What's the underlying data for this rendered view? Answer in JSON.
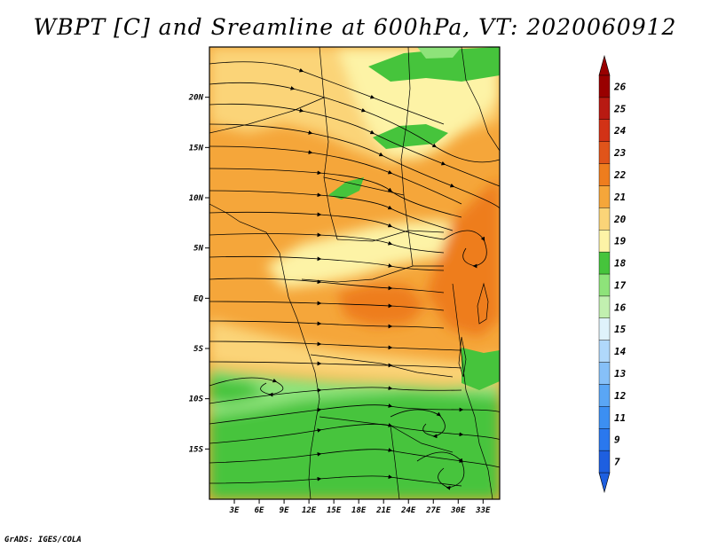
{
  "title": "WBPT [C] and Sreamline at 600hPa, VT: 2020060912",
  "credit": "GrADS: IGES/COLA",
  "lat_labels": [
    "20N",
    "15N",
    "10N",
    "5N",
    "EQ",
    "5S",
    "10S",
    "15S"
  ],
  "lat_values": [
    20,
    15,
    10,
    5,
    0,
    -5,
    -10,
    -15
  ],
  "lon_labels": [
    "3E",
    "6E",
    "9E",
    "12E",
    "15E",
    "18E",
    "21E",
    "24E",
    "27E",
    "30E",
    "33E"
  ],
  "lon_values": [
    3,
    6,
    9,
    12,
    15,
    18,
    21,
    24,
    27,
    30,
    33
  ],
  "extent": {
    "lon_min": 0,
    "lon_max": 35,
    "lat_min": -20,
    "lat_max": 25
  },
  "colorbar": {
    "labels": [
      "7",
      "9",
      "11",
      "12",
      "13",
      "14",
      "15",
      "16",
      "17",
      "18",
      "19",
      "20",
      "21",
      "22",
      "23",
      "24",
      "25",
      "26"
    ],
    "colors": [
      "#1e5fe0",
      "#2a78ee",
      "#3c8ff2",
      "#5aa6f5",
      "#86c0f8",
      "#b0d8fb",
      "#dff2fb",
      "#c2f0b0",
      "#8ee37a",
      "#46c43c",
      "#fdf3a6",
      "#fbd478",
      "#f5a63a",
      "#ee7d1e",
      "#e0541a",
      "#d23216",
      "#b81a12",
      "#990000"
    ]
  },
  "field_colors": {
    "green_dark": "#46c43c",
    "green_light": "#8ee37a",
    "yellow": "#fdf3a6",
    "light_orange": "#fbd478",
    "orange": "#f5a63a",
    "dark_orange": "#ee7d1e"
  }
}
